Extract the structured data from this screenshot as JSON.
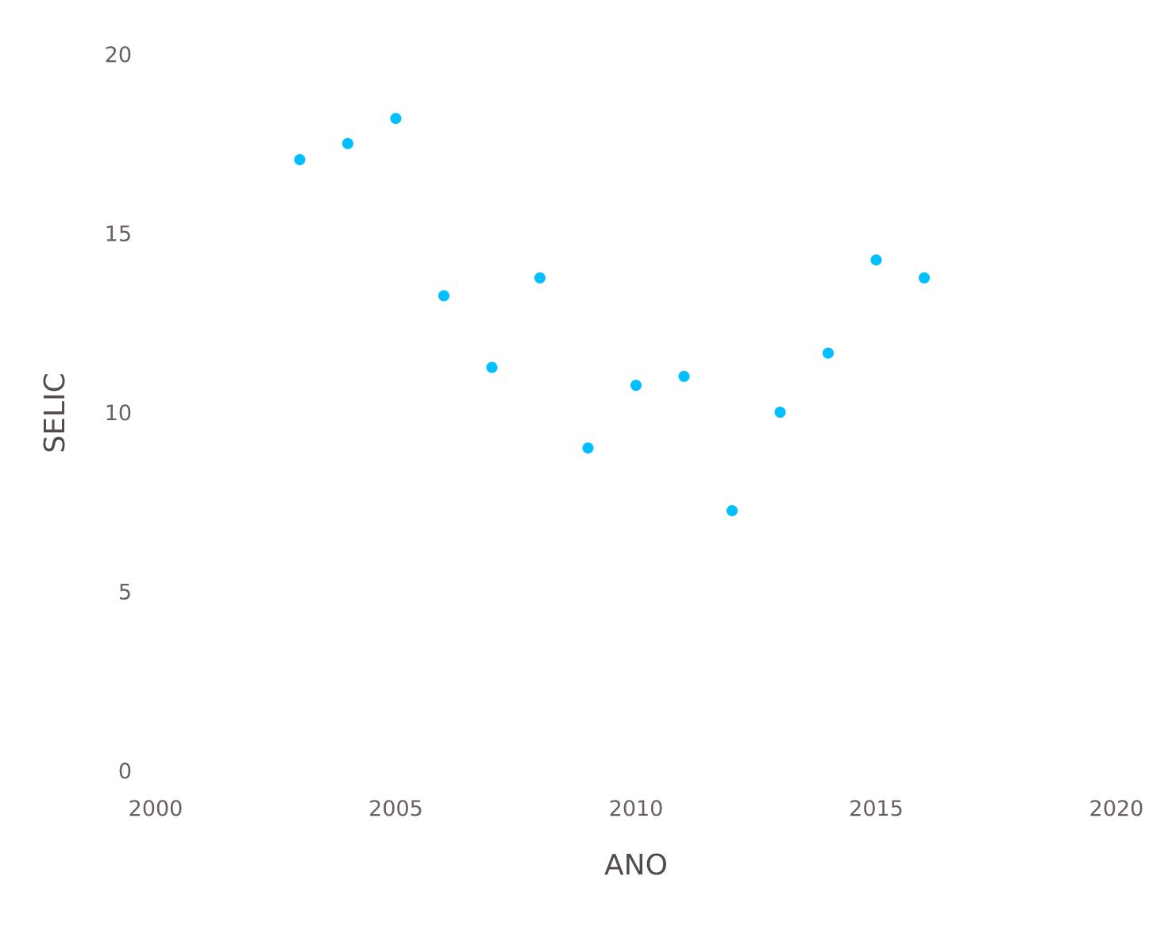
{
  "chart_data": {
    "type": "scatter",
    "title": "",
    "xlabel": "ANO",
    "ylabel": "SELIC",
    "xlim": [
      2000,
      2020
    ],
    "ylim": [
      0,
      20
    ],
    "x_ticks": [
      2000,
      2005,
      2010,
      2015,
      2020
    ],
    "y_ticks": [
      0,
      5,
      10,
      15,
      20
    ],
    "grid": false,
    "legend": "none",
    "point_color": "#00bfff",
    "series": [
      {
        "x": [
          2003,
          2004,
          2005,
          2006,
          2007,
          2008,
          2009,
          2010,
          2011,
          2012,
          2013,
          2014,
          2015,
          2016
        ],
        "y": [
          17.05,
          17.5,
          18.2,
          13.25,
          11.25,
          13.75,
          9.0,
          10.75,
          11.0,
          7.25,
          10.0,
          11.65,
          14.25,
          13.75
        ]
      }
    ]
  }
}
